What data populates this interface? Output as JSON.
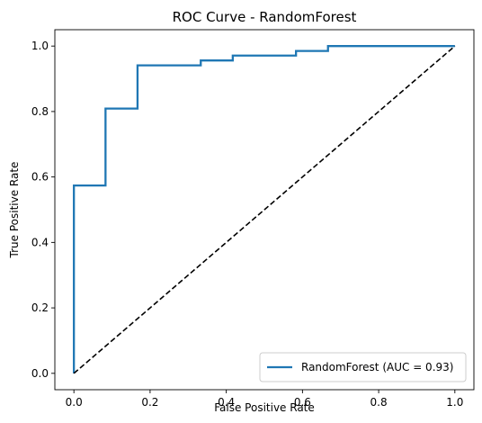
{
  "chart_data": {
    "type": "line",
    "title": "ROC Curve - RandomForest",
    "xlabel": "False Positive Rate",
    "ylabel": "True Positive Rate",
    "xlim": [
      -0.05,
      1.05
    ],
    "ylim": [
      -0.05,
      1.05
    ],
    "xticks": [
      0.0,
      0.2,
      0.4,
      0.6,
      0.8,
      1.0
    ],
    "yticks": [
      0.0,
      0.2,
      0.4,
      0.6,
      0.8,
      1.0
    ],
    "xtick_labels": [
      "0.0",
      "0.2",
      "0.4",
      "0.6",
      "0.8",
      "1.0"
    ],
    "ytick_labels": [
      "0.0",
      "0.2",
      "0.4",
      "0.6",
      "0.8",
      "1.0"
    ],
    "grid": false,
    "legend_position": "lower-right",
    "series": [
      {
        "name": "RandomForest (AUC = 0.93)",
        "color": "#1f77b4",
        "style": "solid",
        "x": [
          0.0,
          0.0,
          0.083,
          0.083,
          0.167,
          0.167,
          0.333,
          0.333,
          0.417,
          0.417,
          0.583,
          0.583,
          0.667,
          0.667,
          1.0
        ],
        "y": [
          0.0,
          0.574,
          0.574,
          0.809,
          0.809,
          0.941,
          0.941,
          0.956,
          0.956,
          0.971,
          0.971,
          0.985,
          0.985,
          1.0,
          1.0
        ]
      },
      {
        "name": "",
        "color": "#000000",
        "style": "dashed",
        "x": [
          0.0,
          1.0
        ],
        "y": [
          0.0,
          1.0
        ]
      }
    ]
  }
}
